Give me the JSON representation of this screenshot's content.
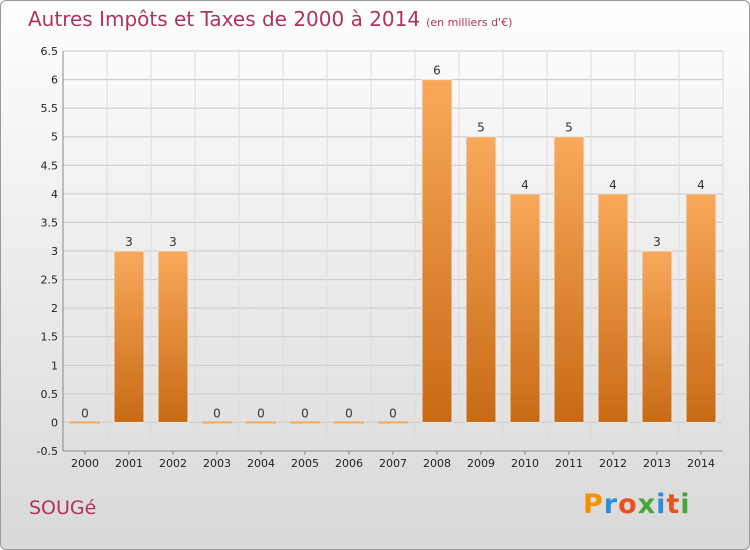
{
  "header": {
    "title": "Autres Impôts et Taxes de 2000 à 2014",
    "subtitle": "(en milliers d'€)"
  },
  "footer": {
    "commune": "SOUGé",
    "logo": "Proxiti"
  },
  "colors": {
    "title": "#b0335f",
    "bar_top": "#f9a95a",
    "bar_bottom": "#c86a14",
    "logo_letters": [
      "#f39200",
      "#2a8fd6",
      "#e8521c",
      "#4aa538",
      "#2a8fd6",
      "#e8521c",
      "#4aa538"
    ]
  },
  "chart_data": {
    "type": "bar",
    "title": "Autres Impôts et Taxes de 2000 à 2014",
    "subtitle": "(en milliers d'€)",
    "xlabel": "",
    "ylabel": "",
    "categories": [
      "2000",
      "2001",
      "2002",
      "2003",
      "2004",
      "2005",
      "2006",
      "2007",
      "2008",
      "2009",
      "2010",
      "2011",
      "2012",
      "2013",
      "2014"
    ],
    "values": [
      0,
      3,
      3,
      0,
      0,
      0,
      0,
      0,
      6,
      5,
      4,
      5,
      4,
      3,
      4
    ],
    "data_labels": [
      "0",
      "3",
      "3",
      "0",
      "0",
      "0",
      "0",
      "0",
      "6",
      "5",
      "4",
      "5",
      "4",
      "3",
      "4"
    ],
    "ylim": [
      -0.5,
      6.5
    ],
    "yticks": [
      -0.5,
      0,
      0.5,
      1,
      1.5,
      2,
      2.5,
      3,
      3.5,
      4,
      4.5,
      5,
      5.5,
      6,
      6.5
    ],
    "ytick_labels": [
      "-0.5",
      "0",
      "0.5",
      "1",
      "1.5",
      "2",
      "2.5",
      "3",
      "3.5",
      "4",
      "4.5",
      "5",
      "5.5",
      "6",
      "6.5"
    ],
    "grid": true,
    "legend": "none"
  }
}
